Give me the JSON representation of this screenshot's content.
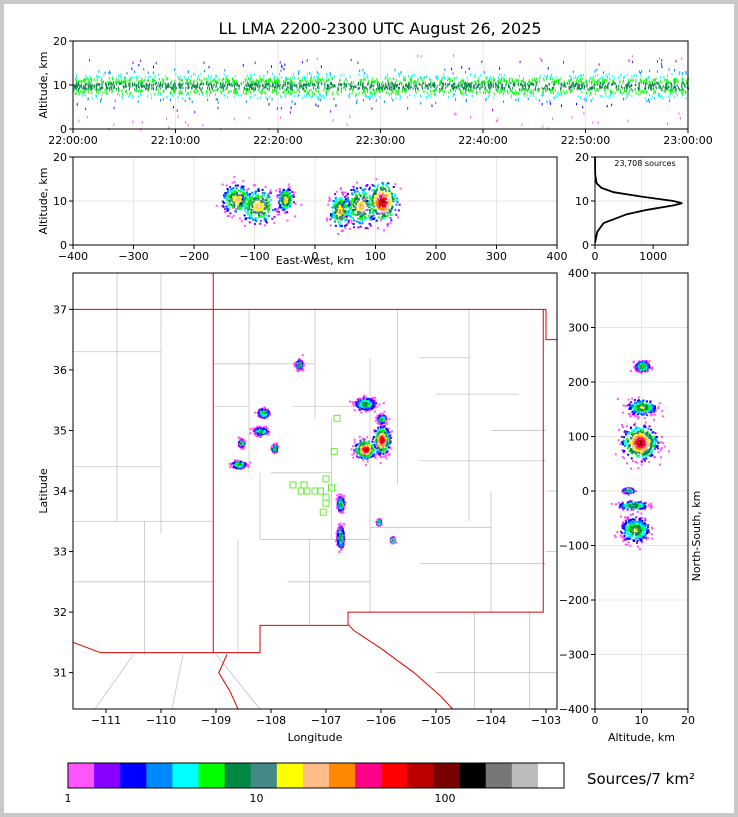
{
  "title": "LL LMA 2200-2300 UTC August 26, 2025",
  "sources_label": "23,708 sources",
  "chart_data": [
    {
      "type": "scatter",
      "name": "time-height",
      "ylabel": "Altitude, km",
      "xlim": [
        "22:00:00",
        "23:00:00"
      ],
      "ylim": [
        0,
        20
      ],
      "xticks": [
        "22:00:00",
        "22:10:00",
        "22:20:00",
        "22:30:00",
        "22:40:00",
        "22:50:00",
        "23:00:00"
      ],
      "yticks": [
        "0",
        "10",
        "20"
      ],
      "altitude_band_km": [
        7,
        13
      ],
      "altitude_median_km": 10
    },
    {
      "type": "scatter",
      "name": "east-west-height",
      "xlabel": "East-West, km",
      "ylabel": "Altitude, km",
      "xlim": [
        -400,
        400
      ],
      "ylim": [
        0,
        20
      ],
      "xticks": [
        "−400",
        "−300",
        "−200",
        "−100",
        "0",
        "100",
        "200",
        "300",
        "400"
      ],
      "yticks": [
        "0",
        "10",
        "20"
      ],
      "clusters": [
        {
          "x_km": -130,
          "alt_km": 10.5,
          "x_spread": 12,
          "alt_spread": 2.5
        },
        {
          "x_km": -95,
          "alt_km": 9,
          "x_spread": 15,
          "alt_spread": 3
        },
        {
          "x_km": -50,
          "alt_km": 10.5,
          "x_spread": 6,
          "alt_spread": 2
        },
        {
          "x_km": 40,
          "alt_km": 8,
          "x_spread": 8,
          "alt_spread": 3
        },
        {
          "x_km": 75,
          "alt_km": 9,
          "x_spread": 14,
          "alt_spread": 3.5
        },
        {
          "x_km": 110,
          "alt_km": 10,
          "x_spread": 12,
          "alt_spread": 3.5
        }
      ]
    },
    {
      "type": "line",
      "name": "altitude-histogram",
      "xlim": [
        0,
        1600
      ],
      "ylim": [
        0,
        20
      ],
      "xticks": [
        "0",
        "1000"
      ],
      "yticks": [
        "0",
        "10",
        "20"
      ],
      "profile": [
        [
          0.5,
          0
        ],
        [
          3,
          40
        ],
        [
          5,
          150
        ],
        [
          7,
          550
        ],
        [
          8,
          900
        ],
        [
          9,
          1350
        ],
        [
          9.5,
          1500
        ],
        [
          10,
          1350
        ],
        [
          11,
          800
        ],
        [
          12,
          320
        ],
        [
          13,
          110
        ],
        [
          14,
          30
        ],
        [
          16,
          4
        ],
        [
          20,
          0
        ]
      ]
    },
    {
      "type": "scatter",
      "name": "plan-view-map",
      "xlabel": "Longitude",
      "ylabel": "Latitude",
      "xlim": [
        -111.6,
        -102.8
      ],
      "ylim": [
        30.4,
        37.6
      ],
      "xticks": [
        "−111",
        "−110",
        "−109",
        "−108",
        "−107",
        "−106",
        "−105",
        "−104",
        "−103"
      ],
      "yticks": [
        "31",
        "32",
        "33",
        "34",
        "35",
        "36",
        "37"
      ],
      "stations": [
        [
          -106.8,
          35.2
        ],
        [
          -106.85,
          34.65
        ],
        [
          -107.0,
          34.2
        ],
        [
          -107.4,
          34.1
        ],
        [
          -107.35,
          34.0
        ],
        [
          -107.2,
          34.0
        ],
        [
          -107.1,
          34.0
        ],
        [
          -107.0,
          33.9
        ],
        [
          -106.9,
          34.05
        ],
        [
          -107.0,
          33.8
        ],
        [
          -107.05,
          33.65
        ],
        [
          -107.6,
          34.1
        ],
        [
          -107.45,
          34.0
        ]
      ],
      "clusters": [
        {
          "lon": -106.0,
          "lat": 34.85,
          "lon_spread": 0.12,
          "lat_spread": 0.18
        },
        {
          "lon": -106.3,
          "lat": 34.7,
          "lon_spread": 0.15,
          "lat_spread": 0.12
        },
        {
          "lon": -106.3,
          "lat": 35.45,
          "lon_spread": 0.15,
          "lat_spread": 0.08
        },
        {
          "lon": -106.0,
          "lat": 35.2,
          "lon_spread": 0.06,
          "lat_spread": 0.06
        },
        {
          "lon": -108.15,
          "lat": 35.3,
          "lon_spread": 0.08,
          "lat_spread": 0.06
        },
        {
          "lon": -108.2,
          "lat": 35.0,
          "lon_spread": 0.1,
          "lat_spread": 0.05
        },
        {
          "lon": -108.6,
          "lat": 34.45,
          "lon_spread": 0.1,
          "lat_spread": 0.05
        },
        {
          "lon": -108.55,
          "lat": 34.8,
          "lon_spread": 0.04,
          "lat_spread": 0.05
        },
        {
          "lon": -107.95,
          "lat": 34.72,
          "lon_spread": 0.04,
          "lat_spread": 0.05
        },
        {
          "lon": -107.5,
          "lat": 36.1,
          "lon_spread": 0.05,
          "lat_spread": 0.06
        },
        {
          "lon": -106.75,
          "lat": 33.8,
          "lon_spread": 0.05,
          "lat_spread": 0.1
        },
        {
          "lon": -106.75,
          "lat": 33.25,
          "lon_spread": 0.05,
          "lat_spread": 0.15
        },
        {
          "lon": -106.05,
          "lat": 33.5,
          "lon_spread": 0.03,
          "lat_spread": 0.04
        },
        {
          "lon": -105.8,
          "lat": 33.2,
          "lon_spread": 0.03,
          "lat_spread": 0.04
        }
      ]
    },
    {
      "type": "scatter",
      "name": "north-south-height",
      "xlabel": "Altitude, km",
      "ylabel": "North-South, km",
      "xlim": [
        0,
        20
      ],
      "ylim": [
        -400,
        400
      ],
      "xticks": [
        "0",
        "10",
        "20"
      ],
      "yticks": [
        "400",
        "300",
        "200",
        "100",
        "0",
        "−100",
        "−200",
        "−300",
        "−400"
      ],
      "clusters": [
        {
          "alt_km": 10,
          "ns_km": 230,
          "alt_spread": 1.2,
          "ns_spread": 8
        },
        {
          "alt_km": 10,
          "ns_km": 155,
          "alt_spread": 2.5,
          "ns_spread": 12
        },
        {
          "alt_km": 9.5,
          "ns_km": 90,
          "alt_spread": 3,
          "ns_spread": 25
        },
        {
          "alt_km": 7,
          "ns_km": 2,
          "alt_spread": 1,
          "ns_spread": 4
        },
        {
          "alt_km": 8,
          "ns_km": -25,
          "alt_spread": 2.5,
          "ns_spread": 6
        },
        {
          "alt_km": 8.5,
          "ns_km": -70,
          "alt_spread": 2.5,
          "ns_spread": 18
        }
      ]
    }
  ],
  "colorbar": {
    "label": "Sources/7 km²",
    "tick_labels": [
      "1",
      "10",
      "100"
    ],
    "colors": [
      "#ff55ff",
      "#8800ff",
      "#0000ff",
      "#0088ff",
      "#00ffff",
      "#00ff00",
      "#008844",
      "#448888",
      "#ffff00",
      "#ffbb88",
      "#ff8800",
      "#ff0088",
      "#ff0000",
      "#bb0000",
      "#770000",
      "#000000",
      "#777777",
      "#bbbbbb",
      "#ffffff"
    ]
  }
}
